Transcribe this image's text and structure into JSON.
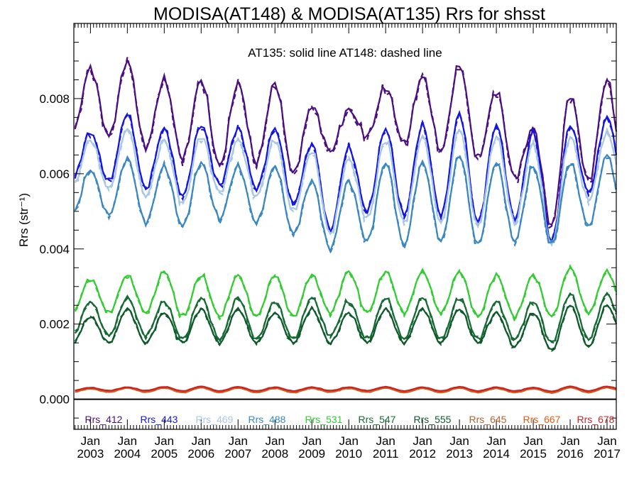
{
  "chart_data": {
    "type": "line",
    "title": "MODISA(AT148) & MODISA(AT135)  Rrs for shsst",
    "annotation": "AT135: solid line   AT148: dashed line",
    "ylabel": "Rrs (str⁻¹)",
    "xlabel": "",
    "ylim": [
      -0.0008,
      0.01
    ],
    "xlim": [
      2002.55,
      2017.25
    ],
    "yticks": [
      0.0,
      0.002,
      0.004,
      0.006,
      0.008
    ],
    "ytick_labels": [
      "0.000",
      "0.002",
      "0.004",
      "0.006",
      "0.008"
    ],
    "xticks": [
      2003,
      2004,
      2005,
      2006,
      2007,
      2008,
      2009,
      2010,
      2011,
      2012,
      2013,
      2014,
      2015,
      2016,
      2017
    ],
    "xtick_month": "Jan",
    "xtick_years": [
      "2003",
      "2004",
      "2005",
      "2006",
      "2007",
      "2008",
      "2009",
      "2010",
      "2011",
      "2012",
      "2013",
      "2014",
      "2015",
      "2016",
      "2017"
    ],
    "grid": false,
    "legend_position": "bottom",
    "styles": [
      {
        "name": "AT135",
        "dash": "solid"
      },
      {
        "name": "AT148",
        "dash": "dashed"
      }
    ],
    "series": [
      {
        "name": "Rrs_412",
        "color": "#4b0f82",
        "jan_peak": [
          0.0088,
          0.009,
          0.0085,
          0.0085,
          0.0084,
          0.0084,
          0.0078,
          0.0077,
          0.0083,
          0.0086,
          0.0089,
          0.0082,
          0.0072,
          0.0081,
          0.0085
        ],
        "jul_trough": [
          0.007,
          0.0067,
          0.0064,
          0.0062,
          0.0063,
          0.006,
          0.0066,
          0.007,
          0.0068,
          0.0066,
          0.0064,
          0.0059,
          0.0046,
          0.0058,
          0.0057
        ]
      },
      {
        "name": "Rrs_443",
        "color": "#1515e0",
        "jan_peak": [
          0.0071,
          0.0076,
          0.0072,
          0.0073,
          0.0072,
          0.0072,
          0.0068,
          0.0067,
          0.0072,
          0.0073,
          0.0076,
          0.0073,
          0.0071,
          0.0073,
          0.0075
        ],
        "jul_trough": [
          0.0058,
          0.0056,
          0.0054,
          0.0057,
          0.0056,
          0.0052,
          0.0045,
          0.005,
          0.0049,
          0.0049,
          0.0047,
          0.0048,
          0.0042,
          0.0055,
          0.0056
        ]
      },
      {
        "name": "Rrs_469",
        "color": "#a7c7e7",
        "jan_peak": [
          0.0069,
          0.0072,
          0.0069,
          0.007,
          0.0069,
          0.0069,
          0.0066,
          0.0064,
          0.0069,
          0.007,
          0.0072,
          0.007,
          0.0068,
          0.007,
          0.0071
        ],
        "jul_trough": [
          0.0056,
          0.0054,
          0.0052,
          0.0055,
          0.0054,
          0.005,
          0.0044,
          0.0048,
          0.0047,
          0.0047,
          0.0046,
          0.0047,
          0.0041,
          0.0053,
          0.0054
        ]
      },
      {
        "name": "Rrs_488",
        "color": "#3a87c2",
        "jan_peak": [
          0.0061,
          0.0064,
          0.0062,
          0.0063,
          0.0062,
          0.0062,
          0.0058,
          0.0058,
          0.0063,
          0.0063,
          0.0065,
          0.0063,
          0.0062,
          0.0063,
          0.0065
        ],
        "jul_trough": [
          0.0049,
          0.0047,
          0.0046,
          0.0048,
          0.0047,
          0.0044,
          0.004,
          0.0042,
          0.0041,
          0.0042,
          0.0041,
          0.0042,
          0.0041,
          0.0046,
          0.0046
        ]
      },
      {
        "name": "Rrs_531",
        "color": "#33cc33",
        "jan_peak": [
          0.0032,
          0.0033,
          0.0034,
          0.0033,
          0.0033,
          0.0033,
          0.0033,
          0.0034,
          0.0034,
          0.0034,
          0.0034,
          0.0033,
          0.0033,
          0.0035,
          0.0034
        ],
        "jul_trough": [
          0.0023,
          0.0023,
          0.0022,
          0.0022,
          0.0022,
          0.0022,
          0.0023,
          0.0023,
          0.0023,
          0.0023,
          0.0022,
          0.0022,
          0.0022,
          0.0023,
          0.0023
        ]
      },
      {
        "name": "Rrs_547",
        "color": "#156b33",
        "jan_peak": [
          0.0026,
          0.0027,
          0.0026,
          0.0027,
          0.0027,
          0.0026,
          0.0027,
          0.0026,
          0.0027,
          0.0027,
          0.0027,
          0.0026,
          0.0026,
          0.0028,
          0.0028
        ],
        "jul_trough": [
          0.0017,
          0.0017,
          0.0016,
          0.0016,
          0.0016,
          0.0016,
          0.0017,
          0.0016,
          0.0016,
          0.0016,
          0.0016,
          0.0016,
          0.0015,
          0.0016,
          0.0017
        ]
      },
      {
        "name": "Rrs_555",
        "color": "#0e5a2a",
        "jan_peak": [
          0.0022,
          0.0024,
          0.0023,
          0.0024,
          0.0024,
          0.0023,
          0.0024,
          0.0023,
          0.0024,
          0.0024,
          0.0024,
          0.0023,
          0.0023,
          0.0025,
          0.0025
        ],
        "jul_trough": [
          0.0015,
          0.0015,
          0.0015,
          0.0015,
          0.0015,
          0.0015,
          0.0015,
          0.0015,
          0.0015,
          0.0015,
          0.0015,
          0.0014,
          0.0013,
          0.0014,
          0.0015
        ]
      },
      {
        "name": "Rrs_645",
        "color": "#b5632a",
        "jan_peak": [
          0.00028,
          0.0003,
          0.0003,
          0.00031,
          0.0003,
          0.00029,
          0.00029,
          0.00029,
          0.0003,
          0.00029,
          0.0003,
          0.00029,
          0.00028,
          0.00031,
          0.00031
        ],
        "jul_trough": [
          0.00019,
          0.00019,
          0.00018,
          0.00018,
          0.00018,
          0.00018,
          0.00019,
          0.00019,
          0.00018,
          0.00018,
          0.00018,
          0.00018,
          0.00017,
          0.00018,
          0.00019
        ]
      },
      {
        "name": "Rrs_667",
        "color": "#e85a12",
        "jan_peak": [
          0.0003,
          0.00031,
          0.00032,
          0.00033,
          0.00032,
          0.00031,
          0.00031,
          0.00031,
          0.00032,
          0.00031,
          0.00032,
          0.00031,
          0.0003,
          0.00033,
          0.00033
        ],
        "jul_trough": [
          0.00021,
          0.00021,
          0.0002,
          0.0002,
          0.0002,
          0.0002,
          0.00021,
          0.00021,
          0.0002,
          0.0002,
          0.0002,
          0.0002,
          0.00019,
          0.0002,
          0.00021
        ]
      },
      {
        "name": "Rrs_678",
        "color": "#cc2222",
        "jan_peak": [
          0.00031,
          0.00032,
          0.00033,
          0.00034,
          0.00033,
          0.00032,
          0.00032,
          0.00032,
          0.00033,
          0.00032,
          0.00033,
          0.00032,
          0.00031,
          0.00034,
          0.00034
        ],
        "jul_trough": [
          0.00023,
          0.00023,
          0.00022,
          0.00022,
          0.00022,
          0.00022,
          0.00023,
          0.00023,
          0.00022,
          0.00022,
          0.00022,
          0.00022,
          0.00021,
          0.00022,
          0.00023
        ]
      }
    ]
  }
}
